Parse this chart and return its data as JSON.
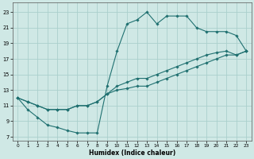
{
  "xlabel": "Humidex (Indice chaleur)",
  "bg_color": "#cfe8e5",
  "grid_color": "#aad0cc",
  "line_color": "#1f7070",
  "xlim": [
    -0.5,
    23.5
  ],
  "ylim": [
    6.5,
    24.2
  ],
  "yticks": [
    7,
    9,
    11,
    13,
    15,
    17,
    19,
    21,
    23
  ],
  "xticks": [
    0,
    1,
    2,
    3,
    4,
    5,
    6,
    7,
    8,
    9,
    10,
    11,
    12,
    13,
    14,
    15,
    16,
    17,
    18,
    19,
    20,
    21,
    22,
    23
  ],
  "curve1_x": [
    0,
    1,
    2,
    3,
    4,
    5,
    6,
    7,
    8,
    9,
    10,
    11,
    12,
    13,
    14,
    15,
    16,
    17,
    18,
    19,
    20,
    21,
    22,
    23
  ],
  "curve1_y": [
    12.0,
    10.5,
    9.5,
    8.5,
    8.2,
    7.8,
    7.5,
    7.5,
    7.5,
    13.5,
    18.0,
    21.5,
    22.0,
    23.0,
    21.5,
    22.5,
    22.5,
    22.5,
    21.0,
    20.5,
    20.5,
    20.5,
    20.0,
    18.0
  ],
  "curve2_x": [
    0,
    1,
    2,
    3,
    4,
    5,
    6,
    7,
    8,
    9,
    10,
    11,
    12,
    13,
    14,
    15,
    16,
    17,
    18,
    19,
    20,
    21,
    22,
    23
  ],
  "curve2_y": [
    12.0,
    11.5,
    11.0,
    10.5,
    10.5,
    10.5,
    11.0,
    11.0,
    11.5,
    12.5,
    13.5,
    14.0,
    14.5,
    14.5,
    15.0,
    15.5,
    16.0,
    16.5,
    17.0,
    17.5,
    17.8,
    18.0,
    17.5,
    18.0
  ],
  "curve3_x": [
    0,
    1,
    2,
    3,
    4,
    5,
    6,
    7,
    8,
    9,
    10,
    11,
    12,
    13,
    14,
    15,
    16,
    17,
    18,
    19,
    20,
    21,
    22,
    23
  ],
  "curve3_y": [
    12.0,
    11.5,
    11.0,
    10.5,
    10.5,
    10.5,
    11.0,
    11.0,
    11.5,
    12.5,
    13.0,
    13.2,
    13.5,
    13.5,
    14.0,
    14.5,
    15.0,
    15.5,
    16.0,
    16.5,
    17.0,
    17.5,
    17.5,
    18.0
  ]
}
